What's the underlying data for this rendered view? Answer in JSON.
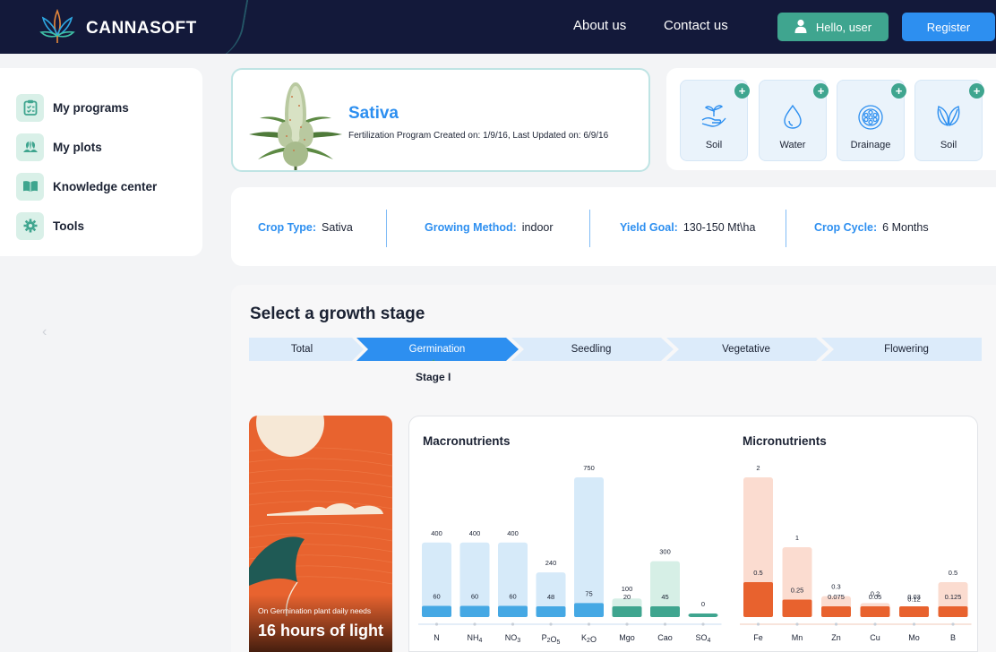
{
  "header": {
    "brand": "CANNASOFT",
    "nav": [
      "About us",
      "Contact us"
    ],
    "hello_label": "Hello, user",
    "register_label": "Register"
  },
  "sidebar": {
    "items": [
      {
        "label": "My programs",
        "icon": "clipboard-icon"
      },
      {
        "label": "My plots",
        "icon": "plots-icon"
      },
      {
        "label": "Knowledge center",
        "icon": "book-icon"
      },
      {
        "label": "Tools",
        "icon": "gear-icon"
      }
    ]
  },
  "program": {
    "title": "Sativa",
    "subtitle": "Fertilization Program Created on: 1/9/16, Last Updated on: 6/9/16"
  },
  "conditions": [
    {
      "label": "Soil",
      "icon": "sprout-hand-icon"
    },
    {
      "label": "Water",
      "icon": "water-drop-icon"
    },
    {
      "label": "Drainage",
      "icon": "drainage-icon"
    },
    {
      "label": "Soil",
      "icon": "leaves-icon"
    }
  ],
  "info": [
    {
      "key": "Crop Type:",
      "value": "Sativa"
    },
    {
      "key": "Growing Method:",
      "value": "indoor"
    },
    {
      "key": "Yield Goal:",
      "value": "130-150 Mt\\ha"
    },
    {
      "key": "Crop Cycle:",
      "value": "6 Months"
    }
  ],
  "growth": {
    "title": "Select a growth stage",
    "stages": [
      "Total",
      "Germination",
      "Seedling",
      "Vegetative",
      "Flowering"
    ],
    "active_stage": "Germination",
    "sub_label": "Stage I"
  },
  "light": {
    "caption": "On Germination plant daily needs",
    "value": "16 hours of light"
  },
  "colors": {
    "navy": "#13193a",
    "blue": "#2d8ff0",
    "green": "#3fa58f",
    "orange": "#e8622e"
  },
  "chart_data": [
    {
      "type": "bar",
      "title": "Macronutrients",
      "categories": [
        "N",
        "NH4",
        "NO3",
        "P2O5",
        "K2O",
        "Mgo",
        "Cao",
        "SO4"
      ],
      "category_colors": [
        "blue",
        "blue",
        "blue",
        "blue",
        "blue",
        "green",
        "green",
        "green"
      ],
      "series": [
        {
          "values": [
            400,
            400,
            400,
            240,
            750,
            100,
            300,
            0
          ]
        },
        {
          "values": [
            60,
            60,
            60,
            48,
            75,
            20,
            45,
            null
          ]
        }
      ]
    },
    {
      "type": "bar",
      "title": "Micronutrients",
      "categories": [
        "Fe",
        "Mn",
        "Zn",
        "Cu",
        "Mo",
        "B"
      ],
      "series": [
        {
          "values": [
            2,
            1,
            0.3,
            0.2,
            0.12,
            0.5
          ]
        },
        {
          "values": [
            0.5,
            0.25,
            0.075,
            0.05,
            0.03,
            0.125
          ]
        }
      ]
    }
  ]
}
